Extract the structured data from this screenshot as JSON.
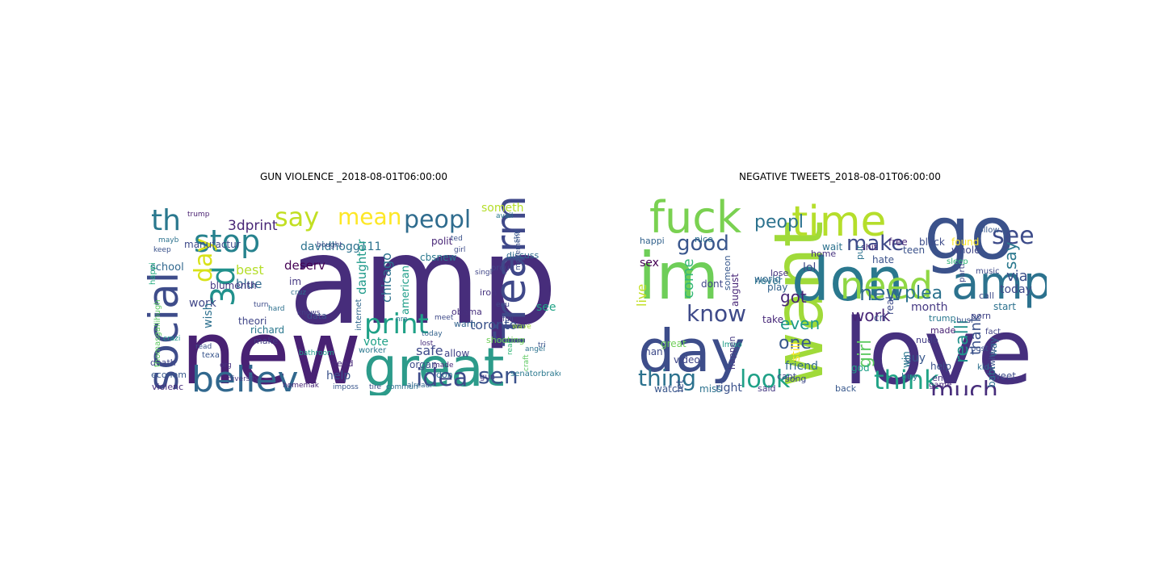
{
  "chart_data": [
    {
      "type": "wordcloud",
      "title": "GUN VIOLENCE _2018-08-01T06:00:00",
      "words": [
        {
          "text": "amp",
          "color": "#472d7b"
        },
        {
          "text": "new",
          "color": "#482173"
        },
        {
          "text": "great",
          "color": "#2c9b8a"
        },
        {
          "text": "social",
          "color": "#3e4c8a"
        },
        {
          "text": "believ",
          "color": "#31688e"
        },
        {
          "text": "firearm",
          "color": "#3f4889"
        },
        {
          "text": "stop",
          "color": "#26828e"
        },
        {
          "text": "th",
          "color": "#2a788e"
        },
        {
          "text": "3d",
          "color": "#21918c"
        },
        {
          "text": "say",
          "color": "#c2df23"
        },
        {
          "text": "mean",
          "color": "#fde725"
        },
        {
          "text": "peopl",
          "color": "#2f6c8e"
        },
        {
          "text": "print",
          "color": "#1fa187"
        },
        {
          "text": "idea",
          "color": "#3e4a89"
        },
        {
          "text": "sen",
          "color": "#3b528b"
        },
        {
          "text": "3dprint",
          "color": "#482677"
        },
        {
          "text": "day",
          "color": "#d8e219"
        },
        {
          "text": "davidhogg111",
          "color": "#2c728e"
        },
        {
          "text": "someth",
          "color": "#b5de2b"
        },
        {
          "text": "chicago",
          "color": "#2c728e"
        },
        {
          "text": "cbsnew",
          "color": "#2a788e"
        },
        {
          "text": "toronto",
          "color": "#3b528b"
        },
        {
          "text": "daughter",
          "color": "#1f9a8a"
        },
        {
          "text": "deserv",
          "color": "#440154"
        },
        {
          "text": "best",
          "color": "#b5de2b"
        },
        {
          "text": "blue",
          "color": "#31688e"
        },
        {
          "text": "work",
          "color": "#404688"
        },
        {
          "text": "safe",
          "color": "#3e4989"
        },
        {
          "text": "vote",
          "color": "#1fa187"
        },
        {
          "text": "help",
          "color": "#3b528b"
        },
        {
          "text": "see",
          "color": "#20a386"
        },
        {
          "text": "polit",
          "color": "#482677"
        },
        {
          "text": "american",
          "color": "#1f9e89"
        },
        {
          "text": "obama",
          "color": "#472f7d"
        },
        {
          "text": "shooting",
          "color": "#6ece58"
        },
        {
          "text": "school",
          "color": "#31688e"
        },
        {
          "text": "manufactur",
          "color": "#3e4a89"
        },
        {
          "text": "blumenth",
          "color": "#453882"
        },
        {
          "text": "theori",
          "color": "#404688"
        },
        {
          "text": "richard",
          "color": "#2a788e"
        },
        {
          "text": "death",
          "color": "#414487"
        },
        {
          "text": "econom",
          "color": "#38588c"
        },
        {
          "text": "violenc",
          "color": "#472c7a"
        },
        {
          "text": "wish",
          "color": "#2d708e"
        },
        {
          "text": "im",
          "color": "#453781"
        },
        {
          "text": "data",
          "color": "#3b528b"
        },
        {
          "text": "warn",
          "color": "#33638d"
        },
        {
          "text": "allow",
          "color": "#414487"
        },
        {
          "text": "organ",
          "color": "#3e4c8a"
        },
        {
          "text": "need",
          "color": "#482979"
        },
        {
          "text": "make",
          "color": "#433e85"
        },
        {
          "text": "iron",
          "color": "#46337f"
        },
        {
          "text": "discuss",
          "color": "#2f6c8e"
        },
        {
          "text": "movement",
          "color": "#3b528b"
        },
        {
          "text": "proud",
          "color": "#414487"
        },
        {
          "text": "senatorbrakey",
          "color": "#2a788e"
        },
        {
          "text": "gun",
          "color": "#453882"
        },
        {
          "text": "don",
          "color": "#2c728e"
        },
        {
          "text": "texa",
          "color": "#39568c"
        },
        {
          "text": "cruz",
          "color": "#2d708e"
        },
        {
          "text": "thomasgallihugh",
          "color": "#5ec962"
        },
        {
          "text": "bought",
          "color": "#3e4a89"
        },
        {
          "text": "keep",
          "color": "#3b528b"
        },
        {
          "text": "trump",
          "color": "#481f70"
        },
        {
          "text": "mayb",
          "color": "#2c728e"
        },
        {
          "text": "happi",
          "color": "#27ad81"
        },
        {
          "text": "knows",
          "color": "#433e85"
        },
        {
          "text": "hard",
          "color": "#2d708e"
        },
        {
          "text": "turn",
          "color": "#3e4c8a"
        },
        {
          "text": "internet",
          "color": "#31688e"
        },
        {
          "text": "worker",
          "color": "#2a788e"
        },
        {
          "text": "bathroom",
          "color": "#1f9e89"
        },
        {
          "text": "diversity",
          "color": "#453882"
        },
        {
          "text": "imposs",
          "color": "#39568c"
        },
        {
          "text": "homemak",
          "color": "#482677"
        },
        {
          "text": "commun",
          "color": "#2d708e"
        },
        {
          "text": "tire",
          "color": "#3e4a89"
        },
        {
          "text": "today",
          "color": "#33638d"
        },
        {
          "text": "made",
          "color": "#482979"
        },
        {
          "text": "alreadi",
          "color": "#31688e"
        },
        {
          "text": "singl",
          "color": "#404688"
        },
        {
          "text": "ted",
          "color": "#3b528b"
        },
        {
          "text": "girl",
          "color": "#3e4c8a"
        },
        {
          "text": "avail",
          "color": "#2a788e"
        },
        {
          "text": "stor",
          "color": "#38588c"
        },
        {
          "text": "real",
          "color": "#35b779"
        },
        {
          "text": "craft",
          "color": "#5ec962"
        },
        {
          "text": "equ",
          "color": "#414487"
        },
        {
          "text": "meet",
          "color": "#3e4a89"
        },
        {
          "text": "nra",
          "color": "#2c728e"
        },
        {
          "text": "lost",
          "color": "#472d7b"
        },
        {
          "text": "org",
          "color": "#46337f"
        },
        {
          "text": "read",
          "color": "#3b528b"
        },
        {
          "text": "fuli",
          "color": "#3e4989"
        },
        {
          "text": "wave",
          "color": "#a0da39"
        },
        {
          "text": "angel",
          "color": "#2c728e"
        },
        {
          "text": "crazi",
          "color": "#1f9a8a"
        },
        {
          "text": "tri",
          "color": "#3b528b"
        }
      ]
    },
    {
      "type": "wordcloud",
      "title": "NEGATIVE TWEETS_2018-08-01T06:00:00",
      "words": [
        {
          "text": "love",
          "color": "#46307e"
        },
        {
          "text": "go",
          "color": "#3b528b"
        },
        {
          "text": "want",
          "color": "#a0da39"
        },
        {
          "text": "im",
          "color": "#6ece58"
        },
        {
          "text": "day",
          "color": "#3d4d8a"
        },
        {
          "text": "don",
          "color": "#2a788e"
        },
        {
          "text": "amp",
          "color": "#2c728e"
        },
        {
          "text": "fuck",
          "color": "#7ad151"
        },
        {
          "text": "time",
          "color": "#b5de2b"
        },
        {
          "text": "need",
          "color": "#8fd744"
        },
        {
          "text": "know",
          "color": "#3e4a89"
        },
        {
          "text": "think",
          "color": "#20a386"
        },
        {
          "text": "look",
          "color": "#1fa187"
        },
        {
          "text": "thing",
          "color": "#2c728e"
        },
        {
          "text": "much",
          "color": "#472d7b"
        },
        {
          "text": "good",
          "color": "#39568c"
        },
        {
          "text": "make",
          "color": "#3e4a89"
        },
        {
          "text": "peopl",
          "color": "#2c728e"
        },
        {
          "text": "see",
          "color": "#3e4c8a"
        },
        {
          "text": "new",
          "color": "#31688e"
        },
        {
          "text": "work",
          "color": "#482677"
        },
        {
          "text": "plea",
          "color": "#2c728e"
        },
        {
          "text": "realli",
          "color": "#21918c"
        },
        {
          "text": "thank",
          "color": "#3b528b"
        },
        {
          "text": "one",
          "color": "#38588c"
        },
        {
          "text": "even",
          "color": "#1f9a8a"
        },
        {
          "text": "got",
          "color": "#482677"
        },
        {
          "text": "say",
          "color": "#2a788e"
        },
        {
          "text": "via",
          "color": "#3b528b"
        },
        {
          "text": "today",
          "color": "#3e4989"
        },
        {
          "text": "girl",
          "color": "#5ec962"
        },
        {
          "text": "month",
          "color": "#453882"
        },
        {
          "text": "live",
          "color": "#c2df23"
        },
        {
          "text": "sex",
          "color": "#440154"
        },
        {
          "text": "come",
          "color": "#35b779"
        },
        {
          "text": "dont",
          "color": "#404688"
        },
        {
          "text": "august",
          "color": "#482677"
        },
        {
          "text": "right",
          "color": "#3b528b"
        },
        {
          "text": "lol",
          "color": "#3e4a89"
        },
        {
          "text": "play",
          "color": "#33638d"
        },
        {
          "text": "never",
          "color": "#2a788e"
        },
        {
          "text": "take",
          "color": "#482979"
        },
        {
          "text": "friend",
          "color": "#31688e"
        },
        {
          "text": "still",
          "color": "#fde725"
        },
        {
          "text": "guy",
          "color": "#38588c"
        },
        {
          "text": "tweet",
          "color": "#3e4c8a"
        },
        {
          "text": "made",
          "color": "#482173"
        },
        {
          "text": "porn",
          "color": "#414487"
        },
        {
          "text": "help",
          "color": "#3b528b"
        },
        {
          "text": "buy",
          "color": "#2d708e"
        },
        {
          "text": "win",
          "color": "#2a788e"
        },
        {
          "text": "god",
          "color": "#1fa187"
        },
        {
          "text": "cant",
          "color": "#3e4a89"
        },
        {
          "text": "video",
          "color": "#404688"
        },
        {
          "text": "watch",
          "color": "#39568c"
        },
        {
          "text": "let",
          "color": "#3b528b"
        },
        {
          "text": "miss",
          "color": "#2c728e"
        },
        {
          "text": "said",
          "color": "#453882"
        },
        {
          "text": "back",
          "color": "#38588c"
        },
        {
          "text": "end",
          "color": "#46337f"
        },
        {
          "text": "start",
          "color": "#2c728e"
        },
        {
          "text": "call",
          "color": "#3e4a89"
        },
        {
          "text": "way",
          "color": "#31688e"
        },
        {
          "text": "found",
          "color": "#fde725"
        },
        {
          "text": "black",
          "color": "#3e4c8a"
        },
        {
          "text": "free",
          "color": "#482979"
        },
        {
          "text": "teen",
          "color": "#3b528b"
        },
        {
          "text": "whole",
          "color": "#404688"
        },
        {
          "text": "nice",
          "color": "#2d708e"
        },
        {
          "text": "happi",
          "color": "#33638d"
        },
        {
          "text": "real",
          "color": "#3e4a89"
        },
        {
          "text": "cri",
          "color": "#3b528b"
        },
        {
          "text": "trump",
          "color": "#2a788e"
        },
        {
          "text": "nude",
          "color": "#433e85"
        },
        {
          "text": "fact",
          "color": "#414487"
        },
        {
          "text": "post",
          "color": "#3b528b"
        },
        {
          "text": "kid",
          "color": "#2d708e"
        },
        {
          "text": "world",
          "color": "#31688e"
        },
        {
          "text": "song",
          "color": "#3e4989"
        },
        {
          "text": "someon",
          "color": "#38588c"
        },
        {
          "text": "wait",
          "color": "#2c728e"
        },
        {
          "text": "shit",
          "color": "#482677"
        },
        {
          "text": "home",
          "color": "#46337f"
        },
        {
          "text": "hate",
          "color": "#3b528b"
        },
        {
          "text": "great",
          "color": "#6ece58"
        },
        {
          "text": "man",
          "color": "#3e4a89"
        },
        {
          "text": "lmao",
          "color": "#1f9e89"
        },
        {
          "text": "happen",
          "color": "#453882"
        },
        {
          "text": "put",
          "color": "#2c728e"
        },
        {
          "text": "sleep",
          "color": "#35b779"
        },
        {
          "text": "busi",
          "color": "#3b528b"
        },
        {
          "text": "music",
          "color": "#3e4989"
        },
        {
          "text": "follow",
          "color": "#38588c"
        },
        {
          "text": "parti",
          "color": "#404688"
        },
        {
          "text": "babi",
          "color": "#2d708e"
        },
        {
          "text": "twitter",
          "color": "#3b528b"
        },
        {
          "text": "game",
          "color": "#482979"
        },
        {
          "text": "lose",
          "color": "#46337f"
        },
        {
          "text": "us",
          "color": "#a0da39"
        }
      ]
    }
  ]
}
